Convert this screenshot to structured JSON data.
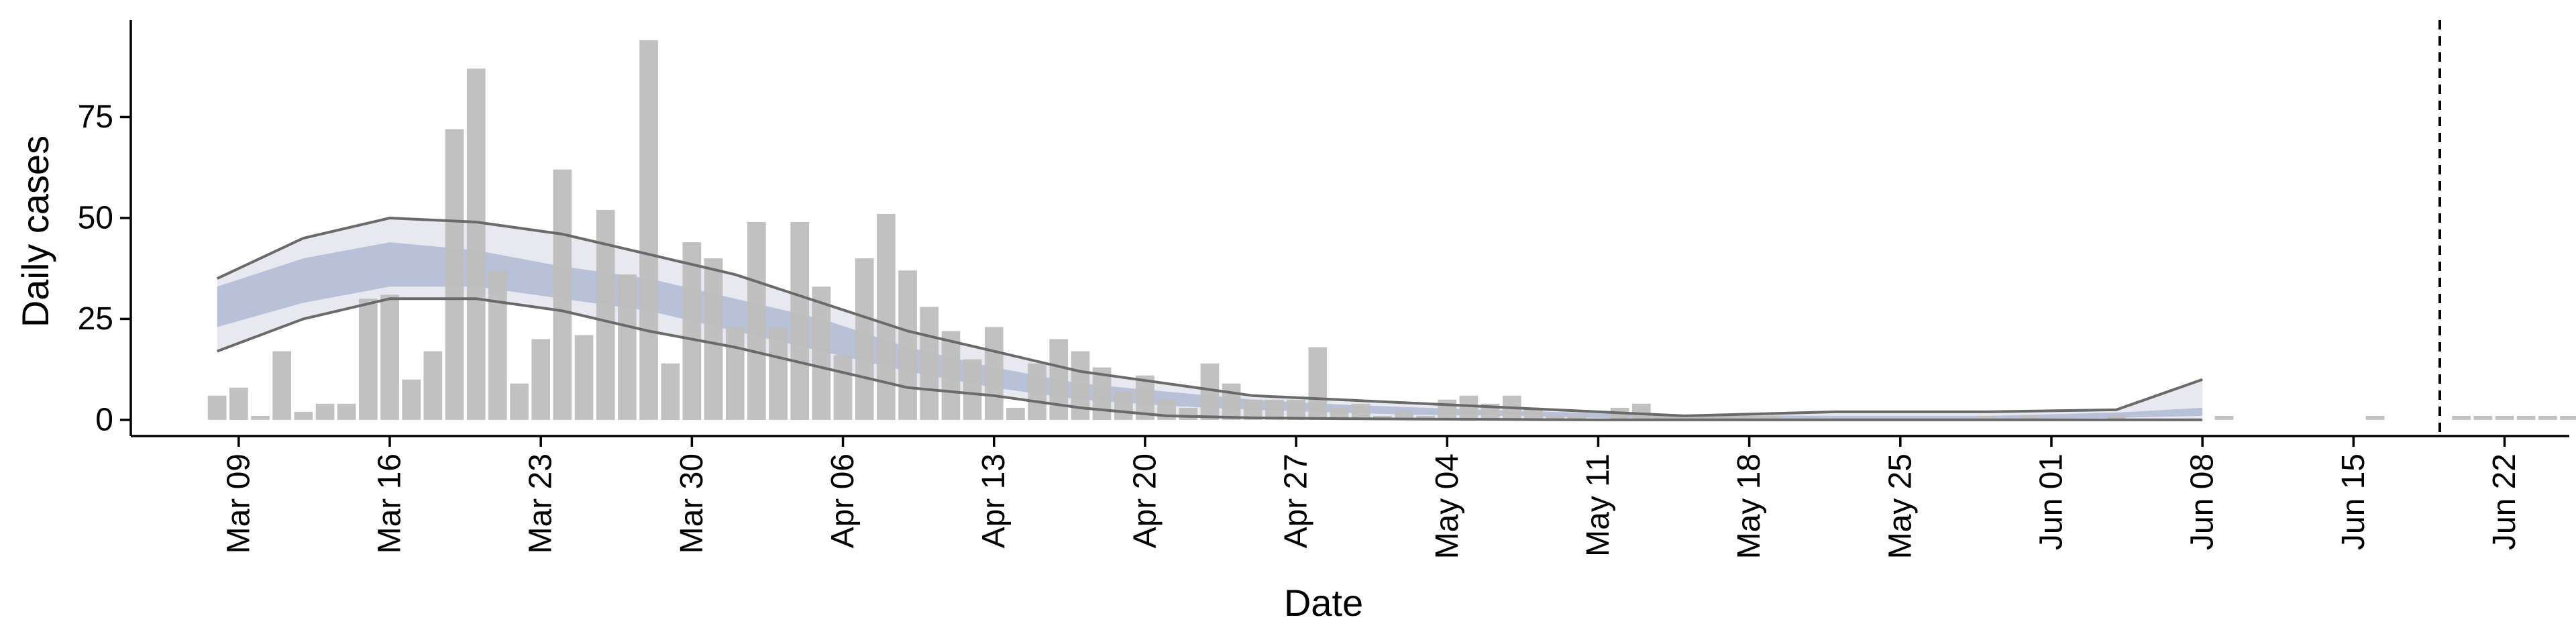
{
  "chart_data": {
    "type": "bar",
    "xlabel": "Date",
    "ylabel": "Daily cases",
    "y_ticks": [
      0,
      25,
      50,
      75
    ],
    "ylim": [
      -4,
      99
    ],
    "x_ticks": [
      {
        "date": "2020-03-09",
        "label": "Mar 09"
      },
      {
        "date": "2020-03-16",
        "label": "Mar 16"
      },
      {
        "date": "2020-03-23",
        "label": "Mar 23"
      },
      {
        "date": "2020-03-30",
        "label": "Mar 30"
      },
      {
        "date": "2020-04-06",
        "label": "Apr 06"
      },
      {
        "date": "2020-04-13",
        "label": "Apr 13"
      },
      {
        "date": "2020-04-20",
        "label": "Apr 20"
      },
      {
        "date": "2020-04-27",
        "label": "Apr 27"
      },
      {
        "date": "2020-05-04",
        "label": "May 04"
      },
      {
        "date": "2020-05-11",
        "label": "May 11"
      },
      {
        "date": "2020-05-18",
        "label": "May 18"
      },
      {
        "date": "2020-05-25",
        "label": "May 25"
      },
      {
        "date": "2020-06-01",
        "label": "Jun 01"
      },
      {
        "date": "2020-06-08",
        "label": "Jun 08"
      },
      {
        "date": "2020-06-15",
        "label": "Jun 15"
      },
      {
        "date": "2020-06-22",
        "label": "Jun 22"
      }
    ],
    "xlim": [
      "2020-03-04",
      "2020-06-25"
    ],
    "bars": {
      "start_date": "2020-03-08",
      "color": "#bebebe",
      "values": [
        6,
        8,
        1,
        17,
        2,
        4,
        4,
        30,
        31,
        10,
        17,
        72,
        87,
        37,
        9,
        20,
        62,
        21,
        52,
        36,
        94,
        14,
        44,
        40,
        23,
        49,
        23,
        49,
        33,
        16,
        40,
        51,
        37,
        28,
        22,
        15,
        23,
        3,
        14,
        20,
        17,
        13,
        7,
        11,
        5,
        3,
        14,
        9,
        5,
        5,
        5,
        18,
        3,
        4,
        1,
        2,
        1,
        5,
        6,
        4,
        6,
        3,
        1,
        1,
        0,
        3,
        4,
        1,
        1,
        1,
        1,
        1,
        1,
        0,
        0,
        0,
        0,
        0,
        0,
        0,
        0,
        0,
        1,
        0,
        1,
        0,
        0,
        0,
        1,
        0,
        0,
        0,
        0,
        1,
        0,
        0,
        0,
        0,
        0,
        0,
        1,
        0,
        0,
        0,
        1,
        1,
        1,
        1,
        1,
        1,
        1,
        1
      ]
    },
    "model": {
      "start_date": "2020-03-08",
      "end_date": "2020-06-08",
      "inner_band_color": "#a8b4cf",
      "outer_band_color": "#e6e6ee",
      "line_color": "#6a6a6a",
      "median": {
        "dates": [
          "2020-03-08",
          "2020-03-12",
          "2020-03-16",
          "2020-03-20",
          "2020-03-24",
          "2020-03-28",
          "2020-04-01",
          "2020-04-05",
          "2020-04-09",
          "2020-04-13",
          "2020-04-17",
          "2020-04-21",
          "2020-04-25",
          "2020-04-29",
          "2020-05-03",
          "2020-05-07",
          "2020-05-11",
          "2020-05-15",
          "2020-05-22",
          "2020-05-29",
          "2020-06-04",
          "2020-06-08"
        ],
        "values": [
          28,
          35,
          39,
          38,
          34,
          31,
          26,
          21,
          15,
          10,
          7,
          5,
          3.5,
          2.5,
          2,
          1.5,
          1,
          0.8,
          0.6,
          0.5,
          1,
          2
        ]
      },
      "inner_low": {
        "values": [
          23,
          29,
          33,
          33,
          30,
          27,
          22,
          17,
          12,
          8,
          5,
          3.5,
          2.5,
          1.8,
          1.2,
          1,
          0.5,
          0.3,
          0.2,
          0.2,
          0.5,
          1
        ]
      },
      "inner_high": {
        "values": [
          33,
          40,
          44,
          42,
          38,
          35,
          30,
          25,
          18,
          13,
          9,
          7,
          5,
          3.8,
          3,
          2.3,
          1.6,
          1.2,
          1,
          1,
          1.8,
          3
        ]
      },
      "upper": {
        "values": [
          35,
          45,
          50,
          49,
          46,
          41,
          36,
          29,
          22,
          17,
          12,
          9,
          6,
          5,
          4,
          3,
          2,
          1,
          2,
          2,
          2.5,
          10
        ]
      },
      "lower": {
        "values": [
          17,
          25,
          30,
          30,
          27,
          22,
          18,
          13,
          8,
          6,
          3,
          1,
          0.5,
          0.3,
          0.2,
          0.1,
          0,
          0,
          0,
          0,
          0,
          0
        ]
      }
    },
    "vline": {
      "date": "2020-06-19"
    }
  }
}
